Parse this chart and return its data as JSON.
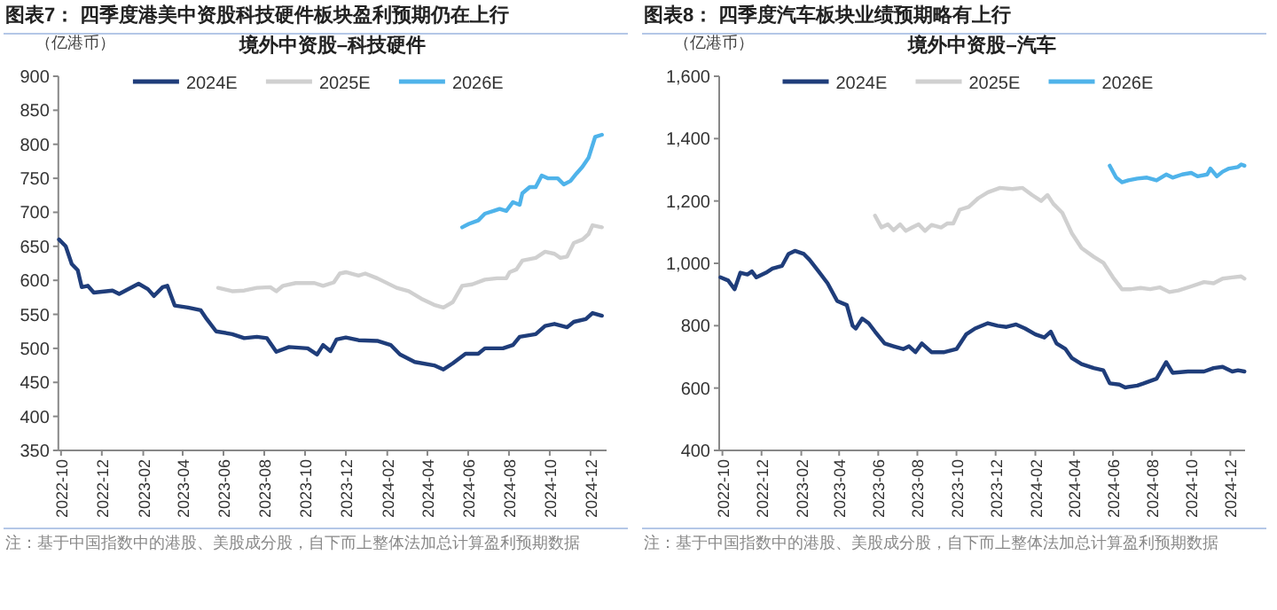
{
  "chart_data": [
    {
      "type": "line",
      "title": "图表7：  四季度港美中资股科技硬件板块盈利预期仍在上行",
      "subtitle": "境外中资股–科技硬件",
      "ylabel": "（亿港币）",
      "legend": "top",
      "line_style": "solid",
      "xlim": [
        "2022-09-27",
        "2024-12-25"
      ],
      "xticks": [
        "2022-10",
        "2022-12",
        "2023-02",
        "2023-04",
        "2023-06",
        "2023-08",
        "2023-10",
        "2023-12",
        "2024-02",
        "2024-04",
        "2024-06",
        "2024-08",
        "2024-10",
        "2024-12"
      ],
      "ylim": [
        350,
        900
      ],
      "yticks": [
        350,
        400,
        450,
        500,
        550,
        600,
        650,
        700,
        750,
        800,
        850,
        900
      ],
      "annotations": [
        "注：基于中国指数中的港股、美股成分股，自下而上整体法加总计算盈利预期数据"
      ],
      "series": [
        {
          "name": "2024E",
          "color": "#1f3d7a",
          "x": [
            "2022-09-28",
            "2022-10-08",
            "2022-10-17",
            "2022-10-26",
            "2022-11-01",
            "2022-11-10",
            "2022-11-19",
            "2022-12-17",
            "2022-12-27",
            "2023-01-25",
            "2023-02-08",
            "2023-02-17",
            "2023-03-02",
            "2023-03-09",
            "2023-03-20",
            "2023-04-09",
            "2023-04-28",
            "2023-05-07",
            "2023-05-21",
            "2023-06-14",
            "2023-07-02",
            "2023-07-21",
            "2023-08-05",
            "2023-08-19",
            "2023-09-07",
            "2023-10-05",
            "2023-10-19",
            "2023-10-28",
            "2023-11-08",
            "2023-11-17",
            "2023-12-01",
            "2023-12-20",
            "2024-01-17",
            "2024-02-06",
            "2024-02-20",
            "2024-03-13",
            "2024-04-11",
            "2024-04-25",
            "2024-05-09",
            "2024-05-28",
            "2024-06-16",
            "2024-06-26",
            "2024-07-23",
            "2024-08-07",
            "2024-08-17",
            "2024-09-10",
            "2024-09-24",
            "2024-10-08",
            "2024-10-27",
            "2024-11-06",
            "2024-11-24",
            "2024-12-04",
            "2024-12-18"
          ],
          "values": [
            660,
            650,
            624,
            615,
            590,
            592,
            582,
            585,
            580,
            595,
            587,
            577,
            590,
            592,
            563,
            560,
            556,
            543,
            525,
            521,
            515,
            517,
            515,
            495,
            502,
            500,
            491,
            505,
            496,
            513,
            516,
            512,
            511,
            505,
            491,
            480,
            475,
            469,
            478,
            492,
            492,
            500,
            500,
            505,
            517,
            521,
            533,
            536,
            531,
            539,
            543,
            552,
            548
          ]
        },
        {
          "name": "2025E",
          "color": "#d0d0d0",
          "x": [
            "2023-05-24",
            "2023-06-14",
            "2023-07-02",
            "2023-07-21",
            "2023-08-10",
            "2023-08-19",
            "2023-08-29",
            "2023-09-17",
            "2023-10-15",
            "2023-10-28",
            "2023-11-13",
            "2023-11-22",
            "2023-12-01",
            "2023-12-20",
            "2023-12-30",
            "2024-01-17",
            "2024-02-15",
            "2024-03-04",
            "2024-03-23",
            "2024-04-11",
            "2024-04-25",
            "2024-05-09",
            "2024-05-23",
            "2024-06-07",
            "2024-06-26",
            "2024-07-14",
            "2024-07-28",
            "2024-08-02",
            "2024-08-12",
            "2024-08-21",
            "2024-09-10",
            "2024-09-24",
            "2024-10-08",
            "2024-10-17",
            "2024-10-27",
            "2024-11-06",
            "2024-11-19",
            "2024-11-28",
            "2024-12-04",
            "2024-12-18"
          ],
          "values": [
            589,
            584,
            585,
            589,
            590,
            584,
            592,
            596,
            596,
            592,
            597,
            610,
            612,
            607,
            610,
            603,
            589,
            584,
            573,
            564,
            560,
            568,
            592,
            594,
            601,
            603,
            603,
            612,
            616,
            629,
            633,
            642,
            639,
            633,
            635,
            655,
            660,
            668,
            681,
            678
          ]
        },
        {
          "name": "2026E",
          "color": "#4fb3ea",
          "x": [
            "2024-05-23",
            "2024-06-02",
            "2024-06-16",
            "2024-06-26",
            "2024-07-09",
            "2024-07-18",
            "2024-07-28",
            "2024-08-07",
            "2024-08-17",
            "2024-08-21",
            "2024-09-01",
            "2024-09-10",
            "2024-09-19",
            "2024-09-28",
            "2024-10-13",
            "2024-10-22",
            "2024-11-01",
            "2024-11-10",
            "2024-11-19",
            "2024-11-28",
            "2024-12-08",
            "2024-12-18"
          ],
          "values": [
            678,
            683,
            688,
            698,
            702,
            705,
            702,
            715,
            711,
            728,
            737,
            737,
            754,
            750,
            750,
            741,
            746,
            757,
            767,
            780,
            811,
            814
          ]
        }
      ]
    },
    {
      "type": "line",
      "title": "图表8：  四季度汽车板块业绩预期略有上行",
      "subtitle": "境外中资股–汽车",
      "ylabel": "（亿港币）",
      "legend": "top",
      "line_style": "solid",
      "xlim": [
        "2022-09-26",
        "2024-12-24"
      ],
      "xticks": [
        "2022-10",
        "2022-12",
        "2023-02",
        "2023-04",
        "2023-06",
        "2023-08",
        "2023-10",
        "2023-12",
        "2024-02",
        "2024-04",
        "2024-06",
        "2024-08",
        "2024-10",
        "2024-12"
      ],
      "ylim": [
        400,
        1600
      ],
      "yticks": [
        400,
        600,
        800,
        {
          "value": 1000,
          "label": "1,000"
        },
        {
          "value": 1200,
          "label": "1,200"
        },
        {
          "value": 1400,
          "label": "1,400"
        },
        {
          "value": 1600,
          "label": "1,600"
        }
      ],
      "annotations": [
        "注：基于中国指数中的港股、美股成分股，自下而上整体法加总计算盈利预期数据"
      ],
      "series": [
        {
          "name": "2024E",
          "color": "#1f3d7a",
          "x": [
            "2022-09-28",
            "2022-10-10",
            "2022-10-20",
            "2022-10-29",
            "2022-11-09",
            "2022-11-16",
            "2022-11-23",
            "2022-12-08",
            "2022-12-18",
            "2023-01-02",
            "2023-01-12",
            "2023-01-22",
            "2023-02-05",
            "2023-02-14",
            "2023-02-28",
            "2023-03-14",
            "2023-03-29",
            "2023-04-13",
            "2023-04-22",
            "2023-04-27",
            "2023-05-07",
            "2023-05-17",
            "2023-05-27",
            "2023-06-11",
            "2023-06-25",
            "2023-07-10",
            "2023-07-19",
            "2023-07-29",
            "2023-08-08",
            "2023-08-23",
            "2023-09-12",
            "2023-10-01",
            "2023-10-16",
            "2023-10-30",
            "2023-11-19",
            "2023-12-04",
            "2023-12-18",
            "2024-01-02",
            "2024-01-16",
            "2024-02-01",
            "2024-02-15",
            "2024-02-25",
            "2024-03-05",
            "2024-03-19",
            "2024-03-29",
            "2024-04-13",
            "2024-05-02",
            "2024-05-17",
            "2024-05-27",
            "2024-06-11",
            "2024-06-20",
            "2024-07-09",
            "2024-07-19",
            "2024-08-08",
            "2024-08-23",
            "2024-09-02",
            "2024-09-26",
            "2024-10-21",
            "2024-11-05",
            "2024-11-19",
            "2024-12-04",
            "2024-12-13",
            "2024-12-23"
          ],
          "values": [
            955,
            945,
            917,
            970,
            964,
            974,
            955,
            970,
            983,
            992,
            1030,
            1040,
            1030,
            1011,
            974,
            936,
            879,
            866,
            800,
            791,
            823,
            808,
            781,
            743,
            734,
            725,
            734,
            715,
            743,
            715,
            715,
            725,
            772,
            791,
            808,
            800,
            796,
            804,
            791,
            772,
            762,
            781,
            743,
            725,
            696,
            677,
            664,
            657,
            615,
            611,
            602,
            608,
            615,
            630,
            683,
            649,
            653,
            653,
            664,
            668,
            653,
            657,
            653
          ]
        },
        {
          "name": "2025E",
          "color": "#d0d0d0",
          "x": [
            "2023-05-27",
            "2023-06-06",
            "2023-06-16",
            "2023-06-25",
            "2023-07-05",
            "2023-07-14",
            "2023-07-24",
            "2023-08-03",
            "2023-08-13",
            "2023-08-23",
            "2023-09-07",
            "2023-09-17",
            "2023-09-26",
            "2023-10-06",
            "2023-10-20",
            "2023-11-04",
            "2023-11-19",
            "2023-12-08",
            "2023-12-27",
            "2024-01-12",
            "2024-01-27",
            "2024-02-10",
            "2024-02-20",
            "2024-02-29",
            "2024-03-14",
            "2024-03-29",
            "2024-04-13",
            "2024-05-02",
            "2024-05-17",
            "2024-06-01",
            "2024-06-15",
            "2024-06-30",
            "2024-07-14",
            "2024-07-29",
            "2024-08-13",
            "2024-08-28",
            "2024-09-11",
            "2024-10-01",
            "2024-10-21",
            "2024-11-05",
            "2024-11-19",
            "2024-12-04",
            "2024-12-18",
            "2024-12-23"
          ],
          "values": [
            1153,
            1115,
            1125,
            1106,
            1125,
            1104,
            1115,
            1125,
            1104,
            1123,
            1115,
            1128,
            1128,
            1172,
            1181,
            1209,
            1228,
            1242,
            1238,
            1242,
            1219,
            1200,
            1219,
            1191,
            1162,
            1096,
            1049,
            1021,
            1002,
            955,
            917,
            917,
            921,
            917,
            923,
            908,
            913,
            926,
            940,
            936,
            951,
            955,
            958,
            951
          ]
        },
        {
          "name": "2026E",
          "color": "#4fb3ea",
          "x": [
            "2024-05-27",
            "2024-06-06",
            "2024-06-15",
            "2024-06-25",
            "2024-07-09",
            "2024-07-24",
            "2024-08-08",
            "2024-08-23",
            "2024-09-02",
            "2024-09-17",
            "2024-10-01",
            "2024-10-11",
            "2024-10-26",
            "2024-10-31",
            "2024-11-10",
            "2024-11-19",
            "2024-11-29",
            "2024-12-13",
            "2024-12-18",
            "2024-12-23"
          ],
          "values": [
            1313,
            1275,
            1260,
            1266,
            1272,
            1275,
            1266,
            1285,
            1275,
            1285,
            1290,
            1279,
            1285,
            1304,
            1279,
            1294,
            1304,
            1309,
            1317,
            1313
          ]
        }
      ]
    }
  ]
}
